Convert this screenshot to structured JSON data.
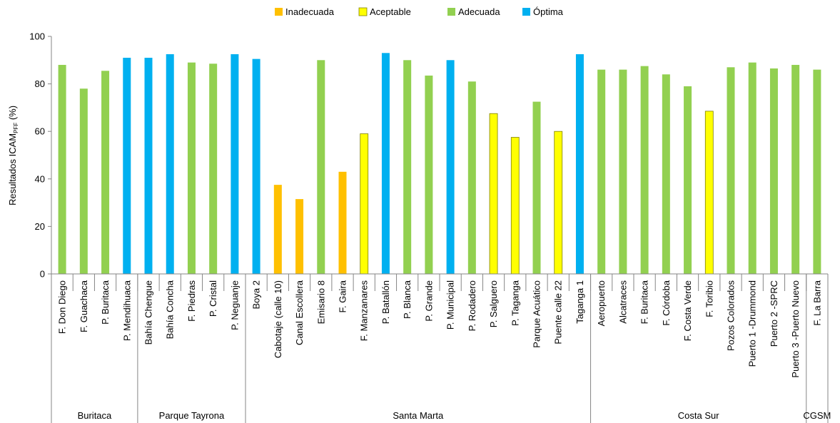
{
  "chart_data": {
    "type": "bar",
    "title": "",
    "ylabel_main": "Resultados ICAM",
    "ylabel_sub": "PFF",
    "ylabel_unit": "(%)",
    "xlabel": "",
    "ylim": [
      0,
      100
    ],
    "yticks": [
      0,
      20,
      40,
      60,
      80,
      100
    ],
    "grid": false,
    "legend_position": "top-center",
    "legend": [
      {
        "key": "inadecuada",
        "label": "Inadecuada",
        "color": "#FFC000"
      },
      {
        "key": "aceptable",
        "label": "Aceptable",
        "color": "#FFFF00"
      },
      {
        "key": "adecuada",
        "label": "Adecuada",
        "color": "#92D050"
      },
      {
        "key": "optima",
        "label": "Óptima",
        "color": "#00B0F0"
      }
    ],
    "categories": [
      "F. Don Diego",
      "F. Guachaca",
      "P. Buritaca",
      "P. Mendihuaca",
      "Bahía Chengue",
      "Bahía Concha",
      "F. Piedras",
      "P. Cristal",
      "P. Neguanje",
      "Boya 2",
      "Cabotaje (calle 10)",
      "Canal Escollera",
      "Emisario 8",
      "F. Gaira",
      "F. Manzanares",
      "P. Batallón",
      "P. Blanca",
      "P. Grande",
      "P. Municipal",
      "P. Rodadero",
      "P. Salguero",
      "P. Taganga",
      "Parque Acuático",
      "Puente calle 22",
      "Taganga 1",
      "Aeropuerto",
      "Alcatraces",
      "F. Buritaca",
      "F. Córdoba",
      "F. Costa Verde",
      "F. Toribio",
      "Pozos Colorados",
      "Puerto 1 -Drummond",
      "Puerto 2 -SPRC",
      "Puerto 3 -Puerto Nuevo",
      "F. La Barra"
    ],
    "values": [
      88,
      78,
      85.5,
      91,
      91,
      92.5,
      89,
      88.5,
      92.5,
      90.5,
      37.5,
      31.5,
      90,
      43,
      59,
      93,
      90,
      83.5,
      90,
      81,
      67.5,
      57.5,
      72.5,
      60,
      92.5,
      86,
      86,
      87.5,
      84,
      79,
      68.5,
      87,
      89,
      86.5,
      88,
      86
    ],
    "classes": [
      "adecuada",
      "adecuada",
      "adecuada",
      "optima",
      "optima",
      "optima",
      "adecuada",
      "adecuada",
      "optima",
      "optima",
      "inadecuada",
      "inadecuada",
      "adecuada",
      "inadecuada",
      "aceptable",
      "optima",
      "adecuada",
      "adecuada",
      "optima",
      "adecuada",
      "aceptable",
      "aceptable",
      "adecuada",
      "aceptable",
      "optima",
      "adecuada",
      "adecuada",
      "adecuada",
      "adecuada",
      "adecuada",
      "aceptable",
      "adecuada",
      "adecuada",
      "adecuada",
      "adecuada",
      "adecuada"
    ],
    "groups": [
      {
        "label": "Buritaca",
        "start": 0,
        "end": 3
      },
      {
        "label": "Parque Tayrona",
        "start": 4,
        "end": 8
      },
      {
        "label": "Santa Marta",
        "start": 9,
        "end": 24
      },
      {
        "label": "Costa Sur",
        "start": 25,
        "end": 34
      },
      {
        "label": "CGSM",
        "start": 35,
        "end": 35
      }
    ]
  }
}
